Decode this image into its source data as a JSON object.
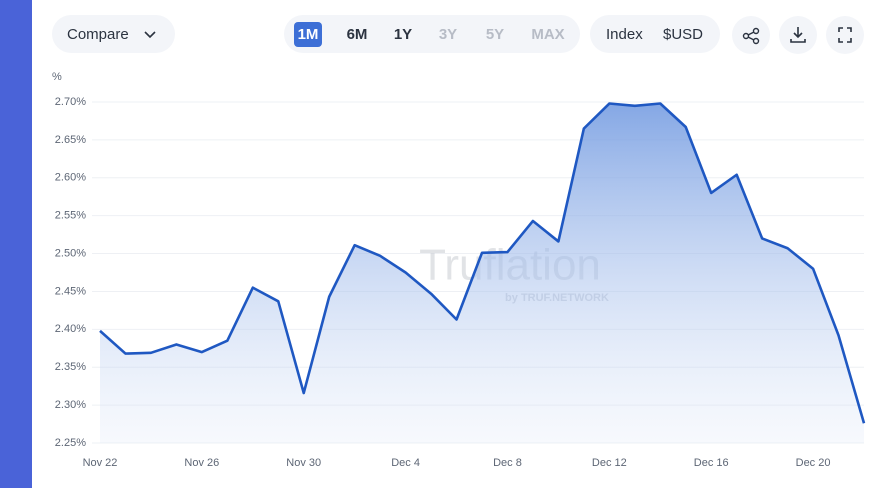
{
  "toolbar": {
    "compare": "Compare",
    "periods": [
      "1M",
      "6M",
      "1Y",
      "3Y",
      "5Y",
      "MAX"
    ],
    "active_period": "1M",
    "disabled_periods": [
      "3Y",
      "5Y",
      "MAX"
    ],
    "index": "Index",
    "currency": "$USD"
  },
  "chart_data": {
    "type": "line",
    "y_unit": "%",
    "watermark": "Truflation",
    "watermark_sub": "by TRUF.NETWORK",
    "categories": [
      "Nov 22",
      null,
      null,
      null,
      "Nov 26",
      null,
      null,
      null,
      "Nov 30",
      null,
      null,
      null,
      "Dec 4",
      null,
      null,
      null,
      "Dec 8",
      null,
      null,
      null,
      "Dec 12",
      null,
      null,
      null,
      "Dec 16",
      null,
      null,
      null,
      "Dec 20",
      null,
      null
    ],
    "values": [
      2.398,
      2.368,
      2.369,
      2.38,
      2.37,
      2.385,
      2.455,
      2.437,
      2.316,
      2.443,
      2.511,
      2.497,
      2.475,
      2.447,
      2.413,
      2.501,
      2.502,
      2.543,
      2.516,
      2.665,
      2.698,
      2.695,
      2.698,
      2.667,
      2.58,
      2.604,
      2.52,
      2.507,
      2.48,
      2.392,
      2.276
    ],
    "color": "#1f58c2",
    "ylim": [
      2.25,
      2.7
    ],
    "yticks": [
      {
        "value": 2.25,
        "label": "2.25%"
      },
      {
        "value": 2.3,
        "label": "2.30%"
      },
      {
        "value": 2.35,
        "label": "2.35%"
      },
      {
        "value": 2.4,
        "label": "2.40%"
      },
      {
        "value": 2.45,
        "label": "2.45%"
      },
      {
        "value": 2.5,
        "label": "2.50%"
      },
      {
        "value": 2.55,
        "label": "2.55%"
      },
      {
        "value": 2.6,
        "label": "2.60%"
      },
      {
        "value": 2.65,
        "label": "2.65%"
      },
      {
        "value": 2.7,
        "label": "2.70%"
      }
    ],
    "grid": true
  }
}
